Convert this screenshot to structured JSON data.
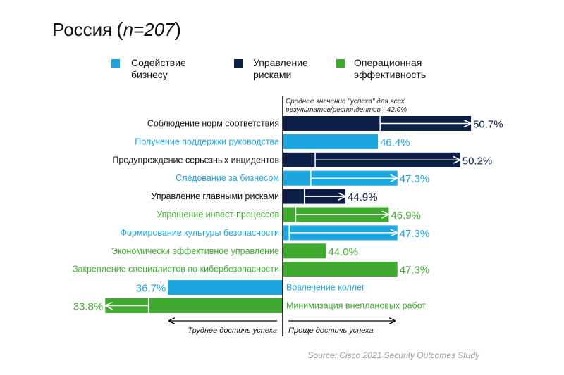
{
  "title_main": "Россия",
  "title_n": "n=207",
  "legend": [
    {
      "line1": "Содействие",
      "line2": "бизнесу",
      "color": "#1ba6e0"
    },
    {
      "line1": "Управление",
      "line2": "рисками",
      "color": "#0c1f47"
    },
    {
      "line1": "Операционная",
      "line2": "эффективность",
      "color": "#3faa2f"
    }
  ],
  "baseline_note_line1": "Среднее значение \"успеха\" для всех",
  "baseline_note_line2": "результатов/респондентов - 42.0%",
  "footer_left": "Труднее достичь успеха",
  "footer_right": "Проще достичь успеха",
  "source": "Source: Cisco 2021 Security Outcomes Study",
  "colors": {
    "business": "#1ba6e0",
    "risk": "#0c1f47",
    "ops": "#3faa2f",
    "axis": "#000000",
    "source": "#999999"
  },
  "chart_data": {
    "type": "bar",
    "orientation": "horizontal",
    "baseline": 42.0,
    "categories": [
      "Соблюдение норм соответствия",
      "Получение поддержки руководства",
      "Предупреждение серьезных инцидентов",
      "Следование за бизнесом",
      "Управление главными рисками",
      "Упрощение инвест-процессов",
      "Формирование культуры безопасности",
      "Экономически эффективное управление",
      "Закрепление специалистов по кибербезопасности",
      "Вовлечение коллег",
      "Минимизация внеплановых работ"
    ],
    "bars": [
      {
        "label": "Соблюдение норм соответствия",
        "value": 50.7,
        "value_label": "50.7%",
        "group": "risk",
        "arrow_from": 46.5
      },
      {
        "label": "Получение поддержки руководства",
        "value": 46.4,
        "value_label": "46.4%",
        "group": "business",
        "arrow_from": null
      },
      {
        "label": "Предупреждение серьезных инцидентов",
        "value": 50.2,
        "value_label": "50.2%",
        "group": "risk",
        "arrow_from": 43.5
      },
      {
        "label": "Следование за бизнесом",
        "value": 47.3,
        "value_label": "47.3%",
        "group": "business",
        "arrow_from": 43.3
      },
      {
        "label": "Управление главными рисками",
        "value": 44.9,
        "value_label": "44.9%",
        "group": "risk",
        "arrow_from": 43.0
      },
      {
        "label": "Упрощение инвест-процессов",
        "value": 46.9,
        "value_label": "46.9%",
        "group": "ops",
        "arrow_from": 42.6
      },
      {
        "label": "Формирование культуры безопасности",
        "value": 47.3,
        "value_label": "47.3%",
        "group": "business",
        "arrow_from": 42.3
      },
      {
        "label": "Экономически эффективное управление",
        "value": 44.0,
        "value_label": "44.0%",
        "group": "ops",
        "arrow_from": null
      },
      {
        "label": "Закрепление специалистов по кибербезопасности",
        "value": 47.3,
        "value_label": "47.3%",
        "group": "ops",
        "arrow_from": null
      },
      {
        "label": "Вовлечение коллег",
        "value": 36.7,
        "value_label": "36.7%",
        "group": "business",
        "arrow_from": null
      },
      {
        "label": "Минимизация внеплановых работ",
        "value": 33.8,
        "value_label": "33.8%",
        "group": "ops",
        "arrow_from": 35.8
      }
    ]
  }
}
